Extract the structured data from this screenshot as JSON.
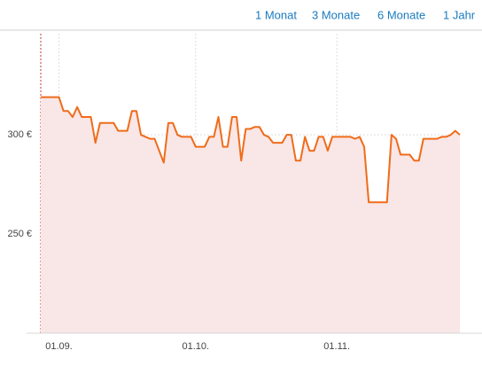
{
  "range_buttons": [
    "1 Monat",
    "3 Monate",
    "6 Monate",
    "1 Jahr"
  ],
  "chart_data": {
    "type": "line",
    "categories": [
      null,
      null,
      null,
      null,
      "01.09.",
      null,
      null,
      null,
      null,
      null,
      null,
      null,
      null,
      null,
      null,
      null,
      null,
      null,
      null,
      null,
      null,
      null,
      null,
      null,
      null,
      null,
      null,
      null,
      null,
      null,
      null,
      null,
      null,
      null,
      "01.10.",
      null,
      null,
      null,
      null,
      null,
      null,
      null,
      null,
      null,
      null,
      null,
      null,
      null,
      null,
      null,
      null,
      null,
      null,
      null,
      null,
      null,
      null,
      null,
      null,
      null,
      null,
      null,
      null,
      null,
      null,
      "01.11.",
      null,
      null,
      null,
      null,
      null,
      null,
      null,
      null,
      null,
      null,
      null,
      null,
      null,
      null,
      null,
      null,
      null,
      null,
      null,
      null,
      null,
      null,
      null,
      null,
      null,
      null,
      null
    ],
    "values": [
      319,
      319,
      319,
      319,
      319,
      312,
      312,
      309,
      314,
      309,
      309,
      309,
      296,
      306,
      306,
      306,
      306,
      302,
      302,
      302,
      312,
      312,
      300,
      299,
      298,
      298,
      292,
      286,
      306,
      306,
      300,
      299,
      299,
      299,
      294,
      294,
      294,
      299,
      299,
      309,
      294,
      294,
      309,
      309,
      287,
      303,
      303,
      304,
      304,
      300,
      299,
      296,
      296,
      296,
      300,
      300,
      287,
      287,
      299,
      292,
      292,
      299,
      299,
      292,
      299,
      299,
      299,
      299,
      299,
      298,
      299,
      294,
      266,
      266,
      266,
      266,
      266,
      300,
      298,
      290,
      290,
      290,
      287,
      287,
      298,
      298,
      298,
      298,
      299,
      299,
      300,
      302,
      300
    ],
    "color": "#ef6c1a",
    "area_color": "#f9e6e6",
    "ylim": [
      200,
      351
    ],
    "yticks": [
      {
        "value": 250,
        "label": "250 €"
      },
      {
        "value": 300,
        "label": "300 €"
      }
    ],
    "grid": true
  }
}
